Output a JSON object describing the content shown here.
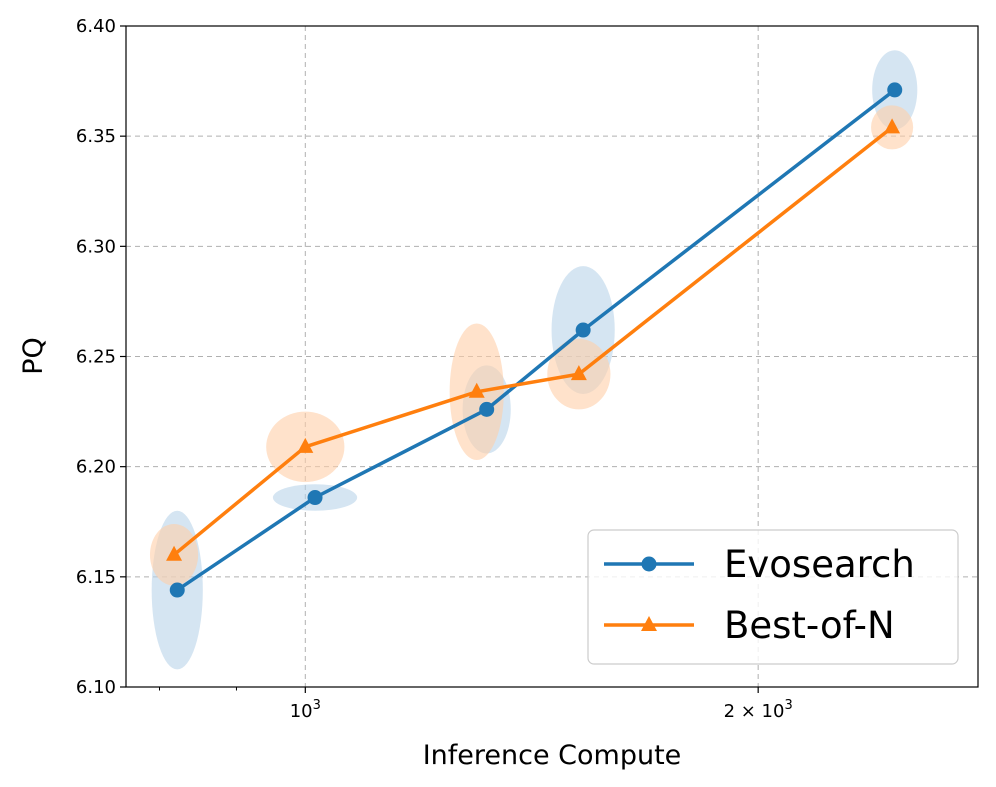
{
  "chart_data": {
    "type": "line",
    "title": "",
    "xlabel": "Inference Compute",
    "ylabel": "PQ",
    "xscale": "log",
    "xlim": [
      760,
      2800
    ],
    "ylim": [
      6.1,
      6.4
    ],
    "grid": true,
    "legend_position": "lower-right",
    "y_ticks": [
      "6.10",
      "6.15",
      "6.20",
      "6.25",
      "6.30",
      "6.35",
      "6.40"
    ],
    "x_ticks": [
      {
        "value": 1000,
        "base": "10",
        "exp": "3",
        "prefix": ""
      },
      {
        "value": 2000,
        "base": "10",
        "exp": "3",
        "prefix": "2 × "
      }
    ],
    "x_minor_ticks": [
      800,
      900
    ],
    "series": [
      {
        "name": "Evosearch",
        "color": "#1f77b4",
        "marker": "circle",
        "x": [
          822,
          1015,
          1320,
          1530,
          2465
        ],
        "y": [
          6.144,
          6.186,
          6.226,
          6.262,
          6.371
        ],
        "spread_x": [
          0.017,
          0.028,
          0.016,
          0.021,
          0.015
        ],
        "spread_y": [
          0.036,
          0.006,
          0.02,
          0.029,
          0.018
        ]
      },
      {
        "name": "Best-of-N",
        "color": "#ff7f0e",
        "marker": "triangle",
        "x": [
          818,
          1000,
          1300,
          1520,
          2455
        ],
        "y": [
          6.16,
          6.209,
          6.234,
          6.242,
          6.354
        ],
        "spread_x": [
          0.016,
          0.026,
          0.018,
          0.021,
          0.014
        ],
        "spread_y": [
          0.014,
          0.016,
          0.031,
          0.016,
          0.01
        ]
      }
    ]
  }
}
